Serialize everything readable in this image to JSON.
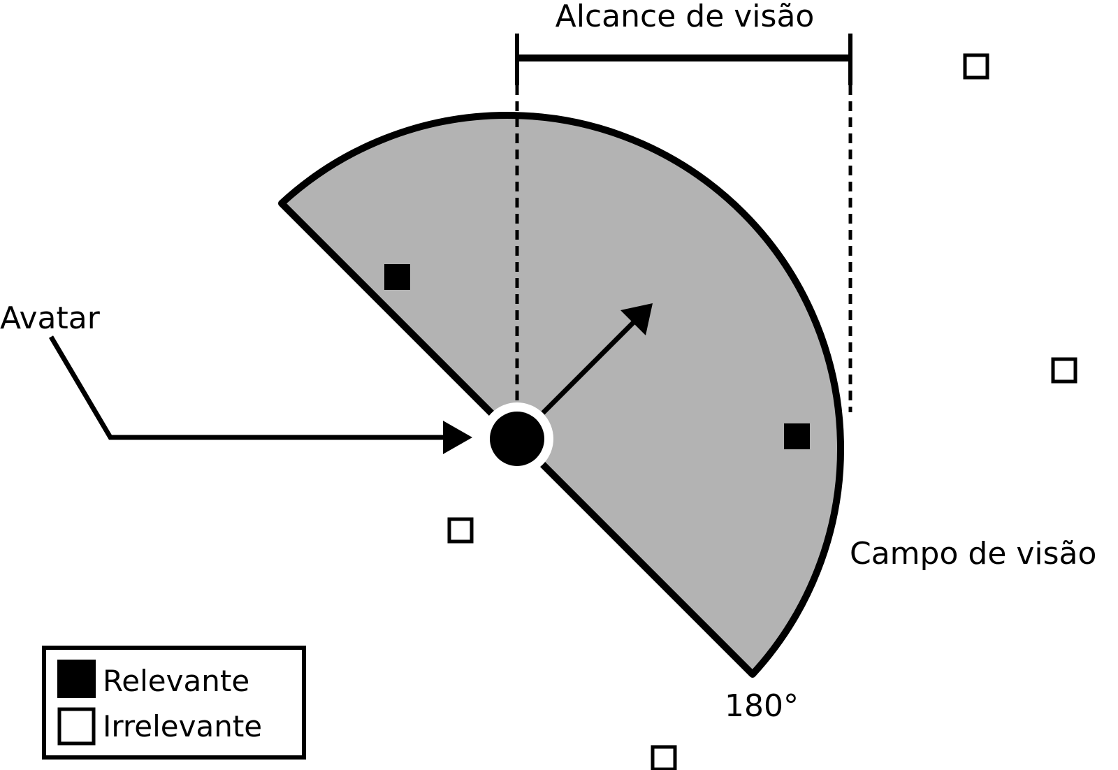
{
  "labels": {
    "range": "Alcance de visão",
    "avatar": "Avatar",
    "field_of_view": "Campo de visão",
    "angle": "180°"
  },
  "legend": {
    "relevant": "Relevante",
    "irrelevant": "Irrelevante"
  },
  "colors": {
    "field_fill": "#b3b3b3",
    "stroke": "#000000",
    "background": "#ffffff"
  }
}
